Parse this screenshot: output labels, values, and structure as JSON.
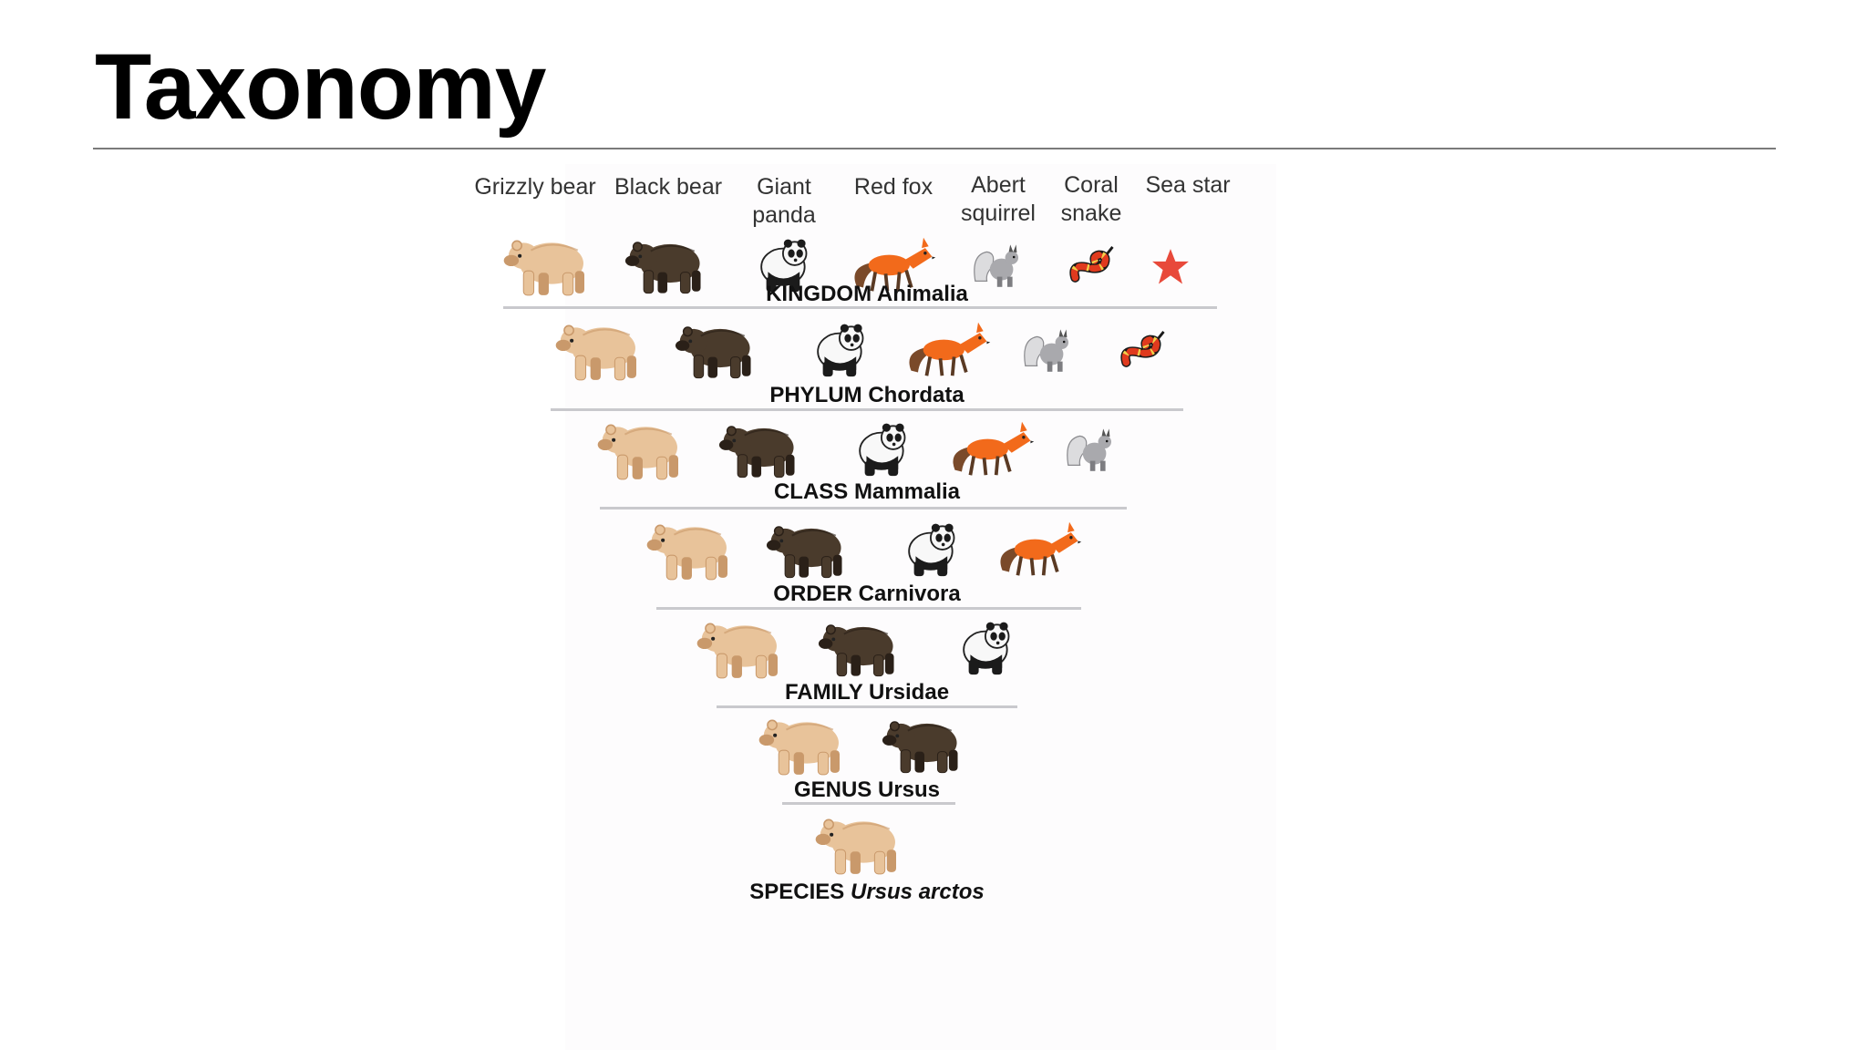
{
  "slide": {
    "title": "Taxonomy"
  },
  "animals": [
    {
      "id": "grizzly",
      "icon": "grizzly-bear-icon",
      "label_lines": [
        "Grizzly bear"
      ]
    },
    {
      "id": "black",
      "icon": "black-bear-icon",
      "label_lines": [
        "Black bear"
      ]
    },
    {
      "id": "panda",
      "icon": "giant-panda-icon",
      "label_lines": [
        "Giant",
        "panda"
      ]
    },
    {
      "id": "fox",
      "icon": "red-fox-icon",
      "label_lines": [
        "Red fox"
      ]
    },
    {
      "id": "squirrel",
      "icon": "abert-squirrel-icon",
      "label_lines": [
        "Abert",
        "squirrel"
      ]
    },
    {
      "id": "snake",
      "icon": "coral-snake-icon",
      "label_lines": [
        "Coral",
        "snake"
      ]
    },
    {
      "id": "star",
      "icon": "sea-star-icon",
      "label_lines": [
        "Sea star"
      ]
    }
  ],
  "ranks": [
    {
      "rank": "KINGDOM",
      "taxon": "Animalia",
      "italic": false,
      "members": [
        "grizzly",
        "black",
        "panda",
        "fox",
        "squirrel",
        "snake",
        "star"
      ]
    },
    {
      "rank": "PHYLUM",
      "taxon": "Chordata",
      "italic": false,
      "members": [
        "grizzly",
        "black",
        "panda",
        "fox",
        "squirrel",
        "snake"
      ]
    },
    {
      "rank": "CLASS",
      "taxon": "Mammalia",
      "italic": false,
      "members": [
        "grizzly",
        "black",
        "panda",
        "fox",
        "squirrel"
      ]
    },
    {
      "rank": "ORDER",
      "taxon": "Carnivora",
      "italic": false,
      "members": [
        "grizzly",
        "black",
        "panda",
        "fox"
      ]
    },
    {
      "rank": "FAMILY",
      "taxon": "Ursidae",
      "italic": false,
      "members": [
        "grizzly",
        "black",
        "panda"
      ]
    },
    {
      "rank": "GENUS",
      "taxon": "Ursus",
      "italic": false,
      "members": [
        "grizzly",
        "black"
      ]
    },
    {
      "rank": "SPECIES",
      "taxon": "Ursus arctos",
      "italic": true,
      "members": [
        "grizzly"
      ]
    }
  ],
  "colors": {
    "grizzly": "#e8c39a",
    "black_bear": "#4a3b2c",
    "fox": "#f26a1b",
    "squirrel": "#a9a9ad",
    "snake_red": "#e03a1e",
    "snake_yellow": "#f2d24a",
    "sea_star": "#e8493a",
    "rule": "#c9c9cd"
  }
}
